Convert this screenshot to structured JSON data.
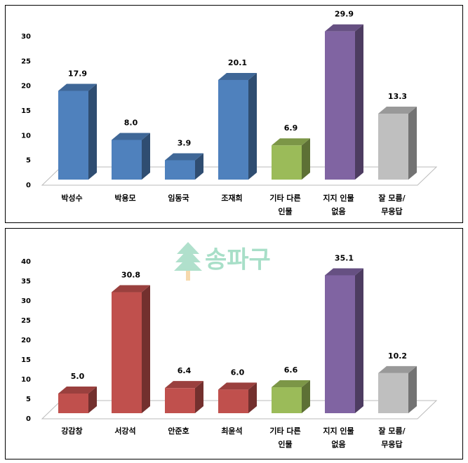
{
  "chart_data": [
    {
      "type": "bar3d",
      "categories": [
        [
          "박성수"
        ],
        [
          "박용모"
        ],
        [
          "임동국"
        ],
        [
          "조재희"
        ],
        [
          "기타 다른",
          "인물"
        ],
        [
          "지지 인물",
          "없음"
        ],
        [
          "잘 모름/",
          "무응답"
        ]
      ],
      "values": [
        17.9,
        8.0,
        3.9,
        20.1,
        6.9,
        29.9,
        13.3
      ],
      "value_labels": [
        "17.9",
        "8.0",
        "3.9",
        "20.1",
        "6.9",
        "29.9",
        "13.3"
      ],
      "colors": [
        "#4f81bd",
        "#4f81bd",
        "#4f81bd",
        "#4f81bd",
        "#9bbb59",
        "#8064a2",
        "#bfbfbf"
      ],
      "ylim": [
        0,
        30
      ],
      "yticks": [
        0,
        5,
        10,
        15,
        20,
        25,
        30
      ]
    },
    {
      "type": "bar3d",
      "watermark": "송파구",
      "categories": [
        [
          "강감창"
        ],
        [
          "서강석"
        ],
        [
          "안준호"
        ],
        [
          "최윤석"
        ],
        [
          "기타 다른",
          "인물"
        ],
        [
          "지지 인물",
          "없음"
        ],
        [
          "잘 모름/",
          "무응답"
        ]
      ],
      "values": [
        5.0,
        30.8,
        6.4,
        6.0,
        6.6,
        35.1,
        10.2
      ],
      "value_labels": [
        "5.0",
        "30.8",
        "6.4",
        "6.0",
        "6.6",
        "35.1",
        "10.2"
      ],
      "colors": [
        "#c0504d",
        "#c0504d",
        "#c0504d",
        "#c0504d",
        "#9bbb59",
        "#8064a2",
        "#bfbfbf"
      ],
      "ylim": [
        0,
        40
      ],
      "yticks": [
        0,
        5,
        10,
        15,
        20,
        25,
        30,
        35,
        40
      ]
    }
  ]
}
